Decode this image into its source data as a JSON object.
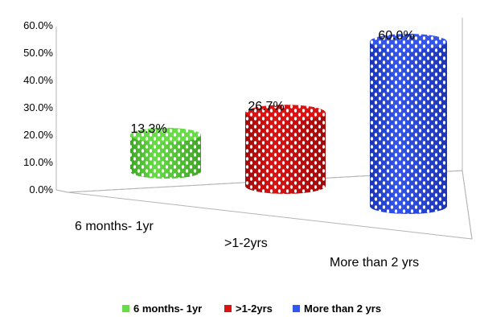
{
  "chart_data": {
    "type": "bar",
    "style": "3d-cylinder",
    "categories": [
      "6 months- 1yr",
      ">1-2yrs",
      "More than 2 yrs"
    ],
    "values": [
      13.3,
      26.7,
      60.0
    ],
    "data_labels": [
      "13.3%",
      "26.7%",
      "60.0%"
    ],
    "y_tick_labels": [
      "0.0%",
      "10.0%",
      "20.0%",
      "30.0%",
      "40.0%",
      "50.0%",
      "60.0%"
    ],
    "ylim": [
      0,
      60
    ],
    "grid": false,
    "legend_position": "bottom",
    "legend": [
      "6 months- 1yr",
      ">1-2yrs",
      "More than 2 yrs"
    ],
    "colors": [
      "#66dd44",
      "#dd1111",
      "#3355ee"
    ],
    "colors_dark": [
      "#3ea524",
      "#a00808",
      "#1a33b8"
    ]
  }
}
